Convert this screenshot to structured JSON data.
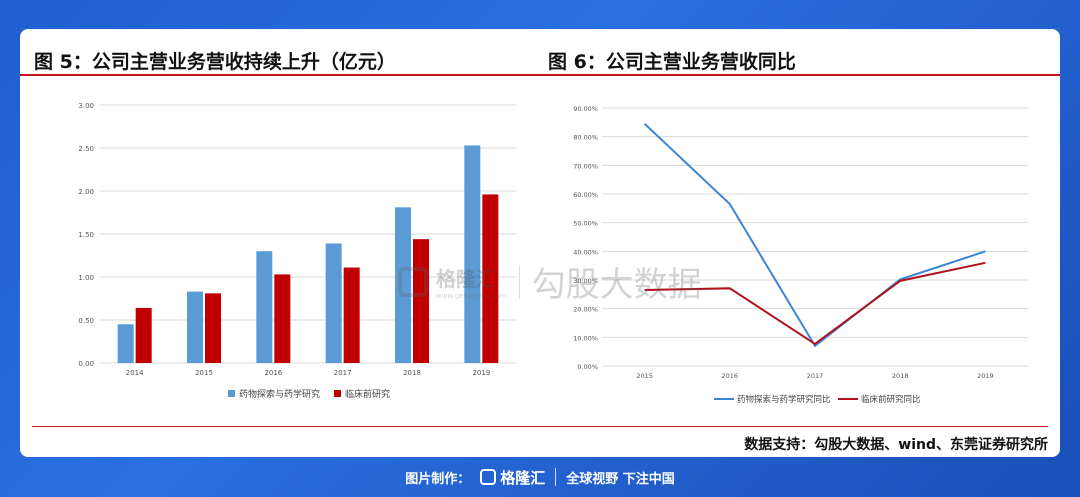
{
  "title_left": "图  5：公司主营业务营收持续上升（亿元）",
  "title_right": "图  6：公司主营业务营收同比",
  "source": "数据支持：勾股大数据、wind、东莞证券研究所",
  "footer": {
    "made_by": "图片制作：",
    "brand": "格隆汇",
    "slogan": "全球视野 下注中国"
  },
  "watermark": {
    "brand": "格隆汇",
    "sub": "www.gelonghui.com",
    "text": "勾股大数据"
  },
  "colors": {
    "blue": "#5b9bd5",
    "red": "#c00000",
    "line_blue": "#3a86d6",
    "line_red": "#b0121b"
  },
  "chart_data": [
    {
      "type": "bar",
      "categories": [
        "2014",
        "2015",
        "2016",
        "2017",
        "2018",
        "2019"
      ],
      "series": [
        {
          "name": "药物探索与药学研究",
          "values": [
            0.45,
            0.83,
            1.3,
            1.39,
            1.81,
            2.53
          ]
        },
        {
          "name": "临床前研究",
          "values": [
            0.64,
            0.81,
            1.03,
            1.11,
            1.44,
            1.96
          ]
        }
      ],
      "yticks": [
        "0.00",
        "0.50",
        "1.00",
        "1.50",
        "2.00",
        "2.50",
        "3.00"
      ],
      "ylim": [
        0,
        3
      ],
      "grid": true,
      "legend": "bottom"
    },
    {
      "type": "line",
      "categories": [
        "2015",
        "2016",
        "2017",
        "2018",
        "2019"
      ],
      "series": [
        {
          "name": "药物探索与药学研究同比",
          "values": [
            84.5,
            56.5,
            7.0,
            30.2,
            40.0
          ]
        },
        {
          "name": "临床前研究同比",
          "values": [
            26.5,
            27.1,
            7.7,
            29.7,
            36.0
          ]
        }
      ],
      "yticks": [
        "0.00%",
        "10.00%",
        "20.00%",
        "30.00%",
        "40.00%",
        "50.00%",
        "60.00%",
        "70.00%",
        "80.00%",
        "90.00%"
      ],
      "ylim": [
        0,
        90
      ],
      "grid": true,
      "legend": "bottom"
    }
  ]
}
